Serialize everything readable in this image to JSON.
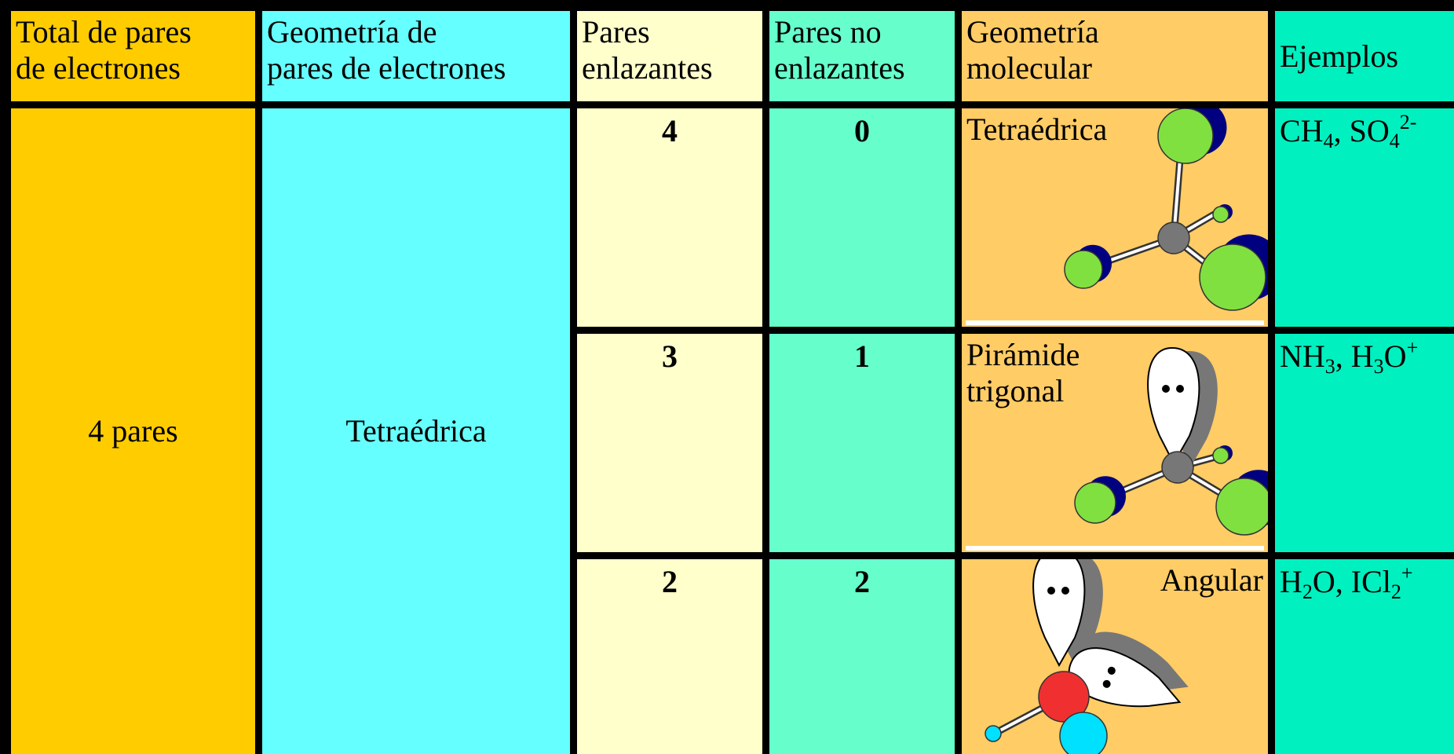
{
  "header": {
    "cells": [
      [
        "Total de pares",
        "de electrones"
      ],
      [
        "Geometría de",
        "pares de electrones"
      ],
      [
        "Pares",
        "enlazantes"
      ],
      [
        "Pares no",
        "enlazantes"
      ],
      [
        "Geometría",
        "molecular"
      ],
      [
        "Ejemplos"
      ]
    ]
  },
  "table": {
    "total": "4 pares",
    "electron_geometry": "Tetraédrica",
    "rows": [
      {
        "bonding": "4",
        "lone": "0",
        "molecular": [
          "Tetraédrica"
        ],
        "examples": [
          {
            "t": "CH"
          },
          {
            "sub": "4"
          },
          {
            "t": ", SO"
          },
          {
            "sub": "4"
          },
          {
            "sup": "2-"
          }
        ]
      },
      {
        "bonding": "3",
        "lone": "1",
        "molecular": [
          "Pirámide",
          "trigonal"
        ],
        "examples": [
          {
            "t": "NH"
          },
          {
            "sub": "3"
          },
          {
            "t": ", H"
          },
          {
            "sub": "3"
          },
          {
            "t": "O"
          },
          {
            "sup": "+"
          }
        ]
      },
      {
        "bonding": "2",
        "lone": "2",
        "molecular": [
          "Angular"
        ],
        "examples": [
          {
            "t": "H"
          },
          {
            "sub": "2"
          },
          {
            "t": "O, ICl"
          },
          {
            "sub": "2"
          },
          {
            "sup": "+"
          }
        ]
      }
    ]
  }
}
